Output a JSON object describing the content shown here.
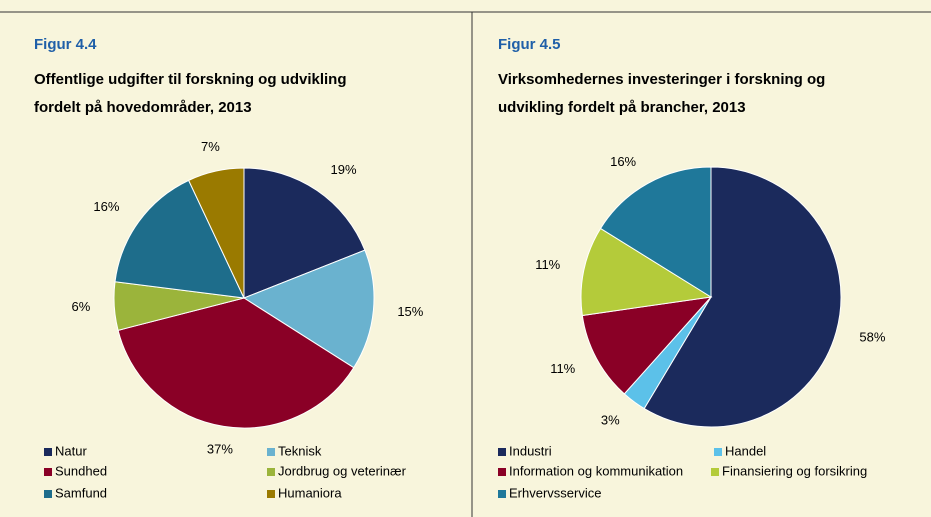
{
  "chart_data": [
    {
      "type": "pie",
      "figure": "Figur 4.4",
      "title": [
        "Offentlige udgifter til forskning og udvikling",
        "fordelt på hovedområder, 2013"
      ],
      "categories": [
        "Natur",
        "Teknisk",
        "Sundhed",
        "Jordbrug og veterinær",
        "Samfund",
        "Humaniora"
      ],
      "values": [
        19,
        15,
        37,
        6,
        16,
        7
      ],
      "value_labels": [
        "19%",
        "15%",
        "37%",
        "6%",
        "16%",
        "7%"
      ],
      "colors": [
        "#1b2a5c",
        "#6ab2cf",
        "#8a0026",
        "#9bb43b",
        "#1e6d8b",
        "#9a7a00"
      ],
      "legend": "bottom"
    },
    {
      "type": "pie",
      "figure": "Figur 4.5",
      "title": [
        "Virksomhedernes investeringer i forskning og",
        "udvikling fordelt på brancher, 2013"
      ],
      "categories": [
        "Industri",
        "Handel",
        "Information og kommunikation",
        "Finansiering og forsikring",
        "Erhvervsservice"
      ],
      "values": [
        58,
        3,
        11,
        11,
        16
      ],
      "value_labels": [
        "58%",
        "3%",
        "11%",
        "11%",
        "16%"
      ],
      "colors": [
        "#1b2a5c",
        "#5cc1e9",
        "#8a0026",
        "#b4cb3a",
        "#1f789a"
      ],
      "legend": "bottom"
    }
  ]
}
